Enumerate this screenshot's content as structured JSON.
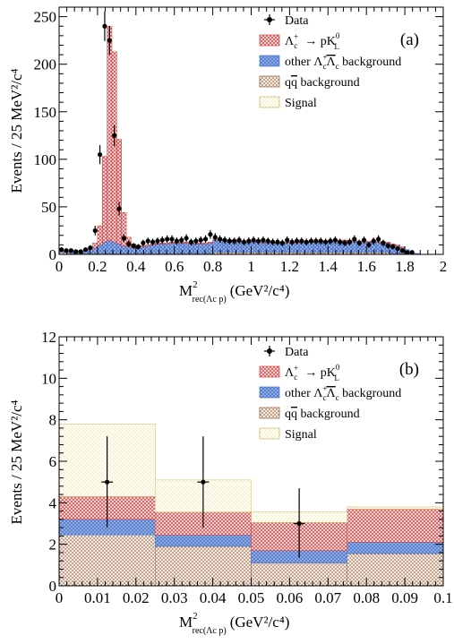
{
  "colors": {
    "signal_kl": "#e05a5a",
    "other_bkg": "#5b86d6",
    "qq_bkg": "#a07050",
    "signal": "#d8c878",
    "data": "#000000"
  },
  "chart_data": [
    {
      "type": "bar",
      "panel_label": "(a)",
      "xlabel_main": "M",
      "xlabel_sup": "2",
      "xlabel_sub": "rec(Λc p)",
      "xlabel_unit": "(GeV²/c⁴)",
      "ylabel": "Events / 25 MeV²/c⁴",
      "xlim": [
        0,
        2
      ],
      "ylim": [
        0,
        260
      ],
      "x_ticks": [
        0,
        0.2,
        0.4,
        0.6,
        0.8,
        1,
        1.2,
        1.4,
        1.6,
        1.8,
        2
      ],
      "x_tick_labels": [
        "0",
        "0.2",
        "0.4",
        "0.6",
        "0.8",
        "1",
        "1.2",
        "1.4",
        "1.6",
        "1.8",
        "2"
      ],
      "y_ticks": [
        0,
        50,
        100,
        150,
        200,
        250
      ],
      "y_tick_labels": [
        "0",
        "50",
        "100",
        "150",
        "200",
        "250"
      ],
      "bin_edges": [
        0,
        0.025,
        0.05,
        0.075,
        0.1,
        0.125,
        0.15,
        0.175,
        0.2,
        0.225,
        0.25,
        0.275,
        0.3,
        0.325,
        0.35,
        0.375,
        0.4,
        0.425,
        0.45,
        0.475,
        0.5,
        0.525,
        0.55,
        0.575,
        0.6,
        0.625,
        0.65,
        0.675,
        0.7,
        0.725,
        0.75,
        0.775,
        0.8,
        0.825,
        0.85,
        0.875,
        0.9,
        0.925,
        0.95,
        0.975,
        1.0,
        1.025,
        1.05,
        1.075,
        1.1,
        1.125,
        1.15,
        1.175,
        1.2,
        1.225,
        1.25,
        1.275,
        1.3,
        1.325,
        1.35,
        1.375,
        1.4,
        1.425,
        1.45,
        1.475,
        1.5,
        1.525,
        1.55,
        1.575,
        1.6,
        1.625,
        1.65,
        1.675,
        1.7,
        1.725,
        1.75,
        1.775,
        1.8,
        1.825,
        1.85,
        1.875,
        1.9,
        1.925,
        1.95,
        1.975,
        2.0
      ],
      "series": [
        {
          "key": "qq",
          "legend_index": 3,
          "values": [
            2,
            2,
            1,
            1,
            1,
            1,
            1,
            1,
            1,
            1,
            1,
            1,
            1,
            1,
            1,
            1,
            1,
            1,
            1,
            1,
            1,
            1,
            1,
            1,
            1,
            1,
            1,
            1,
            1,
            1,
            1,
            1,
            2,
            2,
            2,
            2,
            2,
            2,
            2,
            2,
            2,
            2,
            2,
            2,
            2,
            2,
            2,
            2,
            2,
            2,
            2,
            2,
            2,
            2,
            2,
            2,
            2,
            2,
            2,
            2,
            2,
            2,
            2,
            2,
            2,
            2,
            2,
            2,
            2,
            1,
            1,
            1,
            1,
            0,
            0,
            0,
            0,
            0,
            0,
            0
          ]
        },
        {
          "key": "other",
          "legend_index": 2,
          "values": [
            2,
            2,
            2,
            2,
            2,
            3,
            4,
            6,
            9,
            12,
            14,
            12,
            10,
            8,
            7,
            6,
            6,
            7,
            8,
            9,
            10,
            10,
            10,
            11,
            11,
            11,
            11,
            10,
            10,
            10,
            10,
            11,
            13,
            13,
            12,
            12,
            12,
            11,
            11,
            11,
            11,
            11,
            11,
            10,
            10,
            10,
            10,
            10,
            10,
            10,
            11,
            11,
            11,
            11,
            11,
            11,
            12,
            12,
            12,
            12,
            12,
            12,
            11,
            11,
            11,
            11,
            11,
            10,
            10,
            9,
            8,
            6,
            4,
            2,
            1,
            0,
            0,
            0,
            0,
            0
          ]
        },
        {
          "key": "kl",
          "legend_index": 1,
          "values": [
            0,
            0,
            0,
            0,
            0,
            0,
            1,
            5,
            20,
            90,
            225,
            200,
            110,
            35,
            10,
            4,
            2,
            1,
            1,
            1,
            1,
            1,
            1,
            1,
            1,
            1,
            1,
            1,
            1,
            1,
            1,
            1,
            1,
            1,
            1,
            1,
            1,
            1,
            1,
            1,
            1,
            1,
            1,
            1,
            1,
            1,
            1,
            1,
            1,
            1,
            1,
            1,
            1,
            1,
            1,
            1,
            1,
            1,
            1,
            1,
            1,
            1,
            1,
            1,
            1,
            1,
            1,
            1,
            1,
            1,
            1,
            1,
            0,
            0,
            0,
            0,
            0,
            0,
            0,
            0
          ]
        }
      ],
      "data_points": {
        "x": [
          0.0125,
          0.0375,
          0.0625,
          0.0875,
          0.1125,
          0.1375,
          0.1625,
          0.1875,
          0.2125,
          0.2375,
          0.2625,
          0.2875,
          0.3125,
          0.3375,
          0.3625,
          0.3875,
          0.4125,
          0.4375,
          0.4625,
          0.4875,
          0.5125,
          0.5375,
          0.5625,
          0.5875,
          0.6125,
          0.6375,
          0.6625,
          0.6875,
          0.7125,
          0.7375,
          0.7625,
          0.7875,
          0.8125,
          0.8375,
          0.8625,
          0.8875,
          0.9125,
          0.9375,
          0.9625,
          0.9875,
          1.0125,
          1.0375,
          1.0625,
          1.0875,
          1.1125,
          1.1375,
          1.1625,
          1.1875,
          1.2125,
          1.2375,
          1.2625,
          1.2875,
          1.3125,
          1.3375,
          1.3625,
          1.3875,
          1.4125,
          1.4375,
          1.4625,
          1.4875,
          1.5125,
          1.5375,
          1.5625,
          1.5875,
          1.6125,
          1.6375,
          1.6625,
          1.6875,
          1.7125,
          1.7375,
          1.7625,
          1.7875,
          1.8125,
          1.8375
        ],
        "y": [
          5,
          4,
          4,
          3,
          3,
          5,
          7,
          25,
          105,
          240,
          225,
          125,
          48,
          17,
          11,
          9,
          8,
          12,
          14,
          13,
          14,
          15,
          16,
          16,
          14,
          15,
          17,
          13,
          14,
          15,
          16,
          21,
          18,
          16,
          15,
          14,
          14,
          15,
          13,
          14,
          15,
          14,
          15,
          14,
          13,
          13,
          12,
          15,
          13,
          14,
          14,
          13,
          14,
          14,
          14,
          13,
          14,
          15,
          13,
          12,
          13,
          16,
          12,
          15,
          10,
          14,
          16,
          12,
          9,
          8,
          6,
          4,
          2,
          2
        ],
        "err": [
          2.2,
          2,
          2,
          1.7,
          1.7,
          2.2,
          2.6,
          5,
          10,
          15.5,
          15,
          11,
          7,
          4.1,
          3.3,
          3,
          2.8,
          3.5,
          3.7,
          3.6,
          3.7,
          3.9,
          4,
          4,
          3.7,
          3.9,
          4.1,
          3.6,
          3.7,
          3.9,
          4,
          4.6,
          4.2,
          4,
          3.9,
          3.7,
          3.7,
          3.9,
          3.6,
          3.7,
          3.9,
          3.7,
          3.9,
          3.7,
          3.6,
          3.6,
          3.5,
          3.9,
          3.6,
          3.7,
          3.7,
          3.6,
          3.7,
          3.7,
          3.7,
          3.6,
          3.7,
          3.9,
          3.6,
          3.5,
          3.6,
          4,
          3.5,
          3.9,
          3.2,
          3.7,
          4,
          3.5,
          3,
          2.8,
          2.4,
          2,
          1.4,
          1.4
        ]
      },
      "legend": [
        {
          "key": "data",
          "label": "Data"
        },
        {
          "key": "kl",
          "label_parts": [
            "Λ",
            "+",
            "c",
            "→ pK",
            "0",
            "L"
          ]
        },
        {
          "key": "other",
          "label_parts": [
            "other  Λ",
            "+",
            "c",
            "Λ",
            "c",
            " background"
          ]
        },
        {
          "key": "qq",
          "label_parts": [
            "q",
            "q",
            " background"
          ]
        },
        {
          "key": "signal",
          "label": "Signal"
        }
      ]
    },
    {
      "type": "bar",
      "panel_label": "(b)",
      "xlabel_main": "M",
      "xlabel_sup": "2",
      "xlabel_sub": "rec(Λc p)",
      "xlabel_unit": "(GeV²/c⁴)",
      "ylabel": "Events / 25 MeV²/c⁴",
      "xlim": [
        0,
        0.1
      ],
      "ylim": [
        0,
        12
      ],
      "x_ticks": [
        0,
        0.01,
        0.02,
        0.03,
        0.04,
        0.05,
        0.06,
        0.07,
        0.08,
        0.09,
        0.1
      ],
      "x_tick_labels": [
        "0",
        "0.01",
        "0.02",
        "0.03",
        "0.04",
        "0.05",
        "0.06",
        "0.07",
        "0.08",
        "0.09",
        "0.1"
      ],
      "y_ticks": [
        0,
        2,
        4,
        6,
        8,
        10,
        12
      ],
      "y_tick_labels": [
        "0",
        "2",
        "4",
        "6",
        "8",
        "10",
        "12"
      ],
      "bin_edges": [
        0,
        0.025,
        0.05,
        0.075,
        0.1
      ],
      "series": [
        {
          "key": "qq",
          "values": [
            2.45,
            1.9,
            1.1,
            1.55
          ]
        },
        {
          "key": "other",
          "values": [
            0.75,
            0.55,
            0.6,
            0.55
          ]
        },
        {
          "key": "kl",
          "values": [
            1.1,
            1.1,
            1.35,
            1.6
          ]
        },
        {
          "key": "signal",
          "values": [
            3.5,
            1.55,
            0.5,
            0.1
          ]
        }
      ],
      "data_points": {
        "x": [
          0.0125,
          0.0375,
          0.0625
        ],
        "y": [
          5,
          5,
          3
        ],
        "err_low": [
          2.2,
          2.2,
          1.65
        ],
        "err_high": [
          2.2,
          2.2,
          1.7
        ],
        "x_err": 0.0015
      },
      "legend": [
        {
          "key": "data",
          "label": "Data"
        },
        {
          "key": "kl",
          "label_parts": [
            "Λ",
            "+",
            "c",
            "→ pK",
            "0",
            "L"
          ]
        },
        {
          "key": "other",
          "label_parts": [
            "other  Λ",
            "+",
            "c",
            "Λ",
            "c",
            " background"
          ]
        },
        {
          "key": "qq",
          "label_parts": [
            "q",
            "q",
            " background"
          ]
        },
        {
          "key": "signal",
          "label": "Signal"
        }
      ]
    }
  ]
}
